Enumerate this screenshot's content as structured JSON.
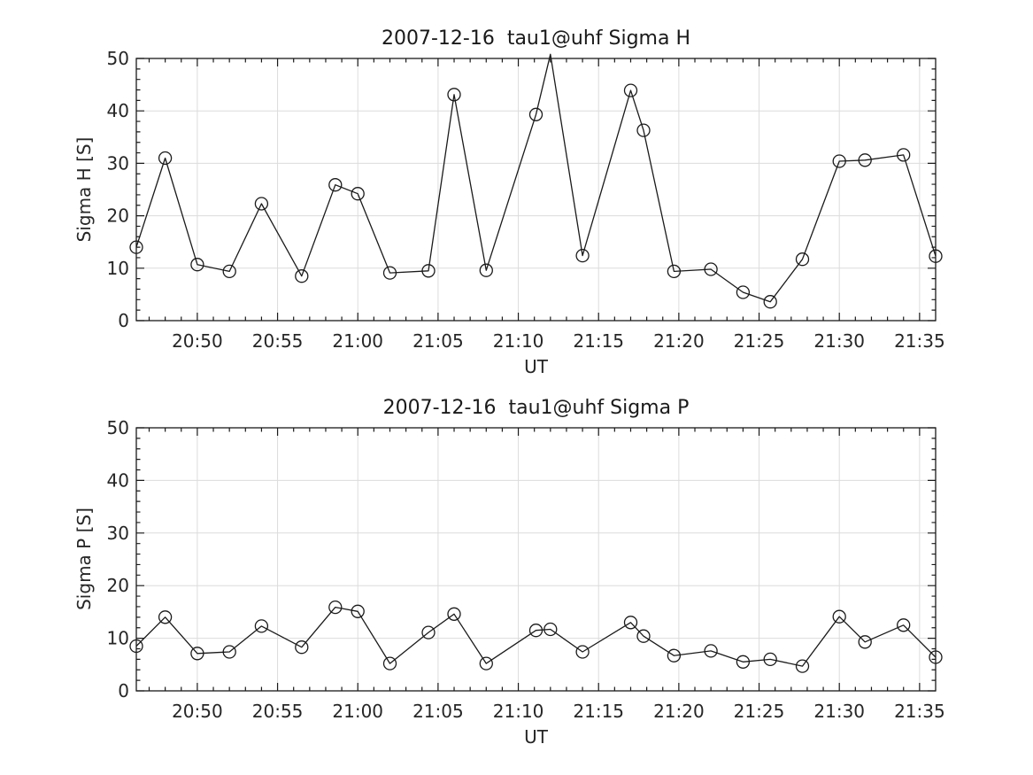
{
  "figure": {
    "background_color": "#ffffff",
    "line_color": "#1a1a1a",
    "axis_color": "#1a1a1a",
    "grid_color": "#dcdcdc",
    "text_color": "#262626"
  },
  "chart_data": [
    {
      "type": "line",
      "title": "2007-12-16  tau1@uhf Sigma H",
      "xlabel": "UT",
      "ylabel": "Sigma H [S]",
      "legend_position": "none",
      "grid": true,
      "marker": "open-circle",
      "ylim": [
        0,
        50
      ],
      "y_major_step": 10,
      "y_minor_step": 2,
      "y_tick_labels": [
        "0",
        "10",
        "20",
        "30",
        "40",
        "50"
      ],
      "x_unit": "minutes after 20:00 UT",
      "xlim": [
        46.2,
        96.0
      ],
      "x_major_tick_minutes": [
        50,
        55,
        60,
        65,
        70,
        75,
        80,
        85,
        90,
        95
      ],
      "x_tick_labels": [
        "20:50",
        "20:55",
        "21:00",
        "21:05",
        "21:10",
        "21:15",
        "21:20",
        "21:25",
        "21:30",
        "21:35"
      ],
      "x_minor_step": 1,
      "x": [
        46.2,
        48,
        50,
        52,
        54,
        56.5,
        58.6,
        60,
        62,
        64.4,
        66,
        68,
        71.1,
        72,
        74,
        77,
        77.8,
        79.7,
        82,
        84,
        85.7,
        87.7,
        90,
        91.6,
        94,
        96
      ],
      "y": [
        14,
        31,
        10.7,
        9.4,
        22.3,
        8.5,
        25.9,
        24.2,
        9.1,
        9.5,
        43.1,
        9.6,
        39.3,
        50.8,
        12.4,
        43.9,
        36.3,
        9.4,
        9.8,
        5.4,
        3.6,
        11.7,
        30.4,
        30.6,
        31.6,
        12.3
      ],
      "note": "point at 21:12 exceeds y-axis maximum (line clipped at top, marker not shown)"
    },
    {
      "type": "line",
      "title": "2007-12-16  tau1@uhf Sigma P",
      "xlabel": "UT",
      "ylabel": "Sigma P [S]",
      "legend_position": "none",
      "grid": true,
      "marker": "open-circle",
      "ylim": [
        0,
        50
      ],
      "y_major_step": 10,
      "y_minor_step": 2,
      "y_tick_labels": [
        "0",
        "10",
        "20",
        "30",
        "40",
        "50"
      ],
      "x_unit": "minutes after 20:00 UT",
      "xlim": [
        46.2,
        96.0
      ],
      "x_major_tick_minutes": [
        50,
        55,
        60,
        65,
        70,
        75,
        80,
        85,
        90,
        95
      ],
      "x_tick_labels": [
        "20:50",
        "20:55",
        "21:00",
        "21:05",
        "21:10",
        "21:15",
        "21:20",
        "21:25",
        "21:30",
        "21:35"
      ],
      "x_minor_step": 1,
      "x": [
        46.2,
        48,
        50,
        52,
        54,
        56.5,
        58.6,
        60,
        62,
        64.4,
        66,
        68,
        71.1,
        72,
        74,
        77,
        77.8,
        79.7,
        82,
        84,
        85.7,
        87.7,
        90,
        91.6,
        94,
        96
      ],
      "y": [
        8.5,
        14,
        7.1,
        7.4,
        12.3,
        8.3,
        15.9,
        15.1,
        5.2,
        11.1,
        14.6,
        5.2,
        11.5,
        11.7,
        7.4,
        13,
        10.4,
        6.7,
        7.6,
        5.5,
        6,
        4.7,
        14.1,
        9.3,
        12.5,
        6.4
      ]
    }
  ]
}
